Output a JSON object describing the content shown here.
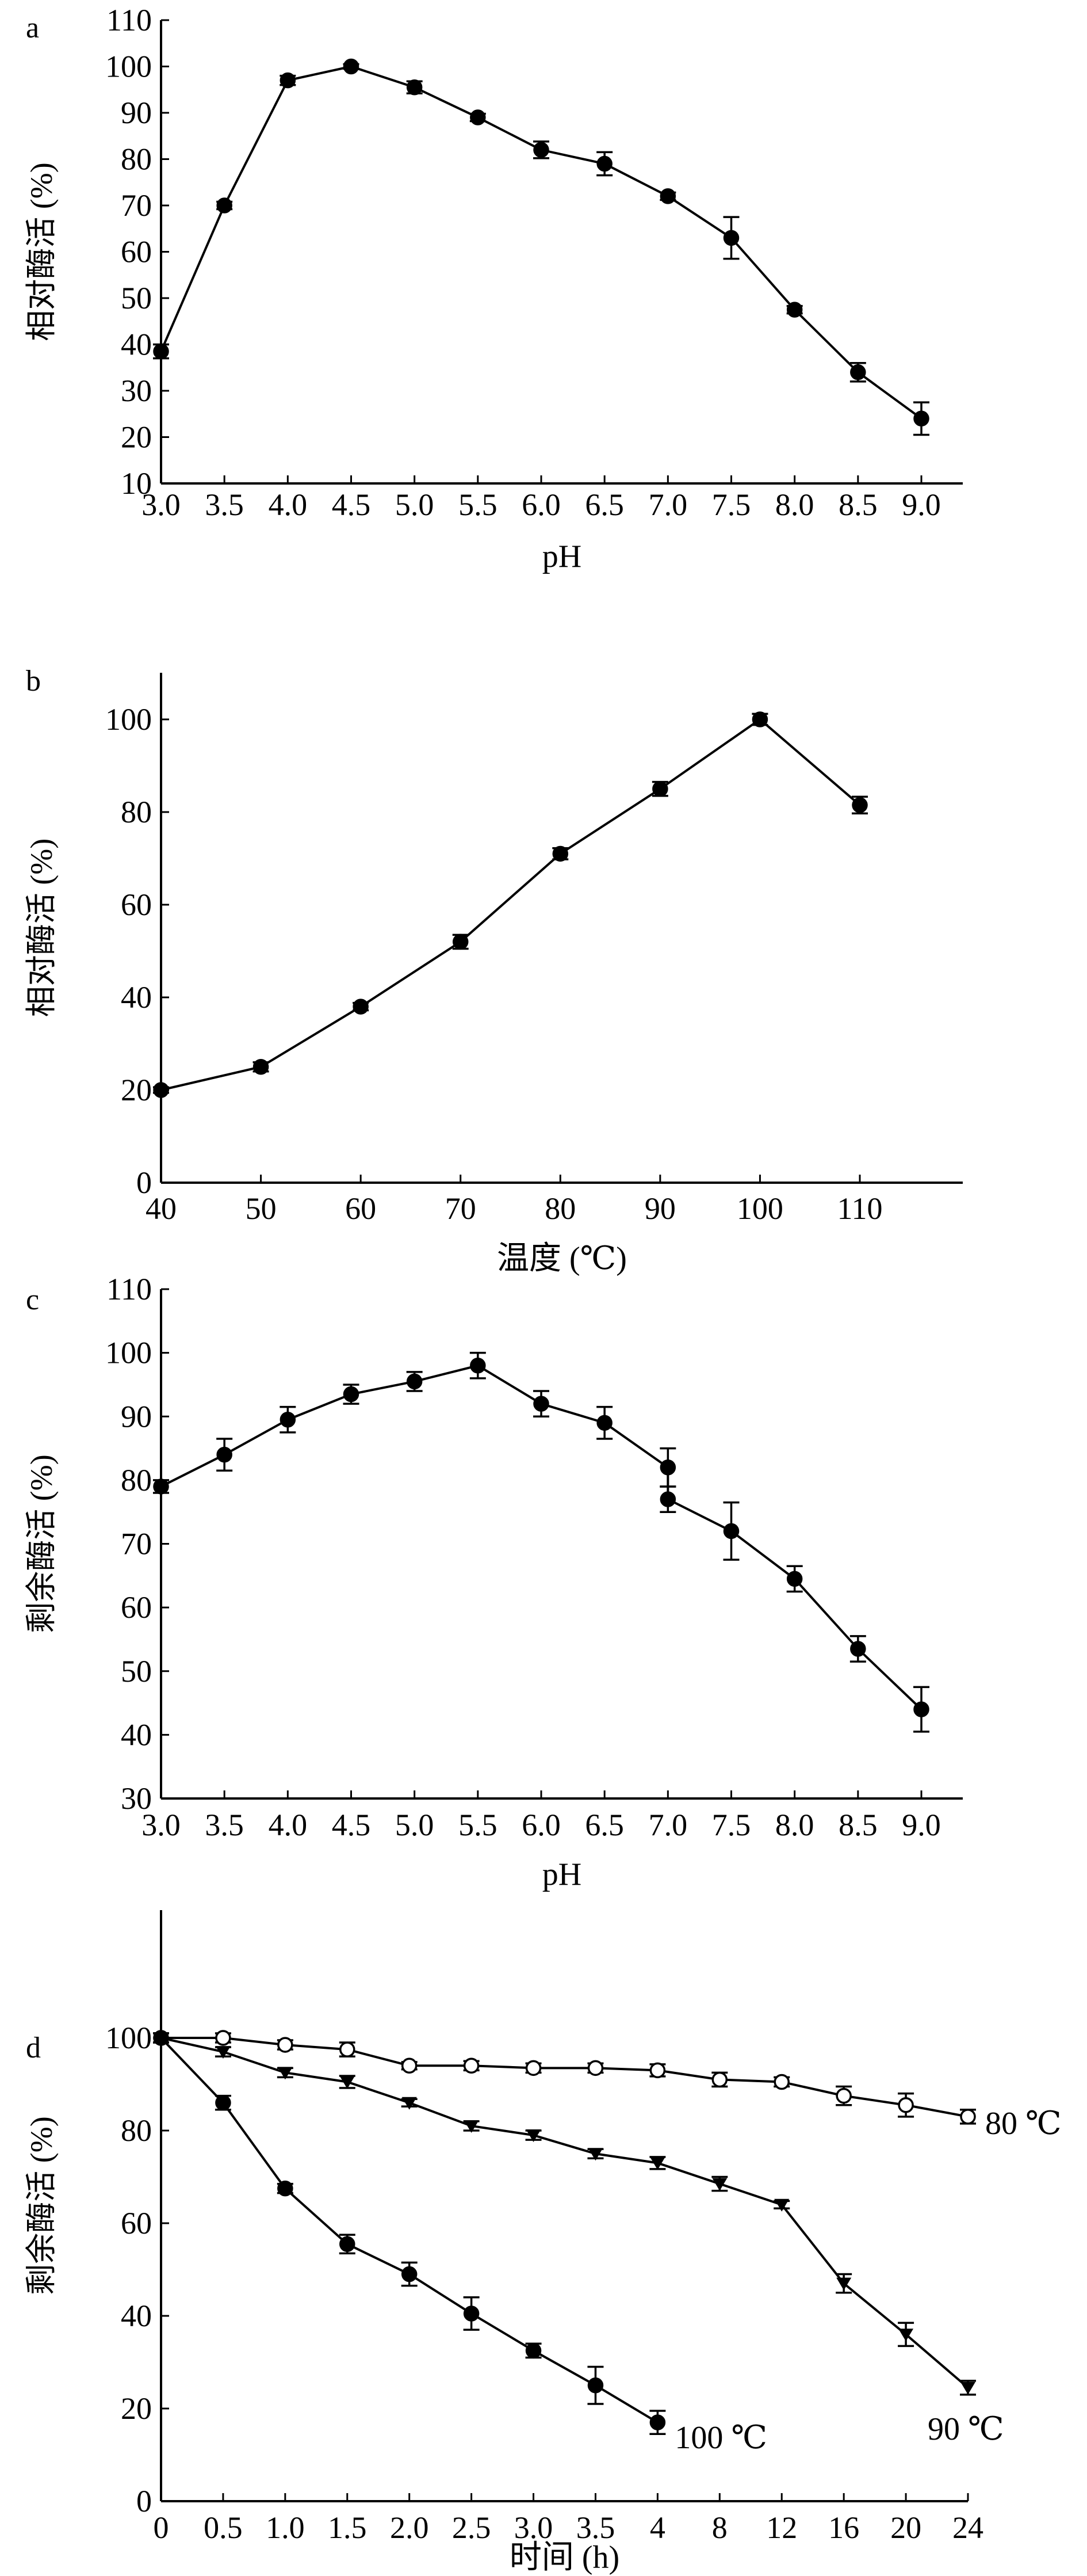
{
  "chart_data": [
    {
      "panel": "a",
      "type": "line",
      "xlabel": "pH",
      "ylabel": "相对酶活 (%)",
      "x": [
        3.0,
        3.5,
        4.0,
        4.5,
        5.0,
        5.5,
        6.0,
        6.5,
        7.0,
        7.5,
        8.0,
        8.5,
        9.0
      ],
      "xticks": [
        "3.0",
        "3.5",
        "4.0",
        "4.5",
        "5.0",
        "5.5",
        "6.0",
        "6.5",
        "7.0",
        "7.5",
        "8.0",
        "8.5",
        "9.0"
      ],
      "ylim": [
        10,
        110
      ],
      "yticks": [
        10,
        20,
        30,
        40,
        50,
        60,
        70,
        80,
        90,
        100,
        110
      ],
      "series": [
        {
          "marker": "filled-circle",
          "values": [
            38.5,
            70,
            97,
            100,
            95.5,
            89,
            82,
            79,
            72,
            63,
            47.5,
            34,
            24
          ],
          "errors": [
            1.5,
            0.8,
            1,
            0.5,
            1.3,
            0.8,
            1.8,
            2.5,
            0.8,
            4.5,
            0.8,
            2,
            3.5
          ]
        }
      ],
      "grid": false
    },
    {
      "panel": "b",
      "type": "line",
      "xlabel": "温度 (℃)",
      "ylabel": "相对酶活 (%)",
      "x": [
        40,
        50,
        60,
        70,
        80,
        90,
        100,
        110
      ],
      "xticks": [
        "40",
        "50",
        "60",
        "70",
        "80",
        "90",
        "100",
        "110"
      ],
      "ylim": [
        0,
        110
      ],
      "yticks": [
        0,
        20,
        40,
        60,
        80,
        100
      ],
      "series": [
        {
          "marker": "filled-circle",
          "values": [
            20,
            25,
            38,
            52,
            71,
            85,
            100,
            81.5
          ],
          "errors": [
            0.6,
            1,
            0.8,
            1.5,
            1.2,
            1.5,
            1.2,
            1.8
          ]
        }
      ],
      "grid": false
    },
    {
      "panel": "c",
      "type": "line",
      "xlabel": "pH",
      "ylabel": "剩余酶活 (%)",
      "x": [
        3.0,
        3.5,
        4.0,
        4.5,
        5.0,
        5.5,
        6.0,
        6.5,
        7.0,
        7.0,
        7.5,
        8.0,
        8.5,
        9.0
      ],
      "xticks": [
        "3.0",
        "3.5",
        "4.0",
        "4.5",
        "5.0",
        "5.5",
        "6.0",
        "6.5",
        "7.0",
        "7.5",
        "8.0",
        "8.5",
        "9.0"
      ],
      "ylim": [
        30,
        110
      ],
      "yticks": [
        30,
        40,
        50,
        60,
        70,
        80,
        90,
        100,
        110
      ],
      "series": [
        {
          "marker": "filled-circle",
          "values": [
            79,
            84,
            89.5,
            93.5,
            95.5,
            98,
            92,
            89,
            82,
            77,
            72,
            64.5,
            53.5,
            44
          ],
          "errors": [
            1,
            2.5,
            2,
            1.5,
            1.5,
            2,
            2,
            2.5,
            3,
            2,
            4.5,
            2,
            2,
            3.5
          ]
        }
      ],
      "grid": false
    },
    {
      "panel": "d",
      "type": "line",
      "xlabel": "时间 (h)",
      "ylabel": "剩余酶活 (%)",
      "xticks": [
        "0",
        "0.5",
        "1.0",
        "1.5",
        "2.0",
        "2.5",
        "3.0",
        "3.5",
        "4",
        "8",
        "12",
        "16",
        "20",
        "24"
      ],
      "ylim": [
        0,
        110
      ],
      "yticks": [
        0,
        20,
        40,
        60,
        80,
        100
      ],
      "series": [
        {
          "name": "80 ℃",
          "marker": "open-circle",
          "values": [
            100,
            100,
            98.5,
            97.5,
            94,
            94,
            93.5,
            93.5,
            93,
            91,
            90.5,
            87.5,
            85.5,
            83
          ],
          "errors": [
            1,
            1,
            1,
            1.5,
            0.8,
            1,
            1,
            1,
            1.3,
            1.5,
            1,
            2,
            2.5,
            1.5
          ]
        },
        {
          "name": "90 ℃",
          "marker": "filled-triangle-down",
          "values": [
            100,
            97,
            92.5,
            90.5,
            86,
            81,
            79,
            75,
            73,
            68.5,
            64,
            47,
            36,
            24.5
          ],
          "errors": [
            1,
            1,
            1,
            1.3,
            0.8,
            1,
            1,
            1,
            1.3,
            1.5,
            0.8,
            2,
            2.5,
            1.5
          ]
        },
        {
          "name": "100 ℃",
          "marker": "filled-circle",
          "values": [
            100,
            86,
            67.5,
            55.5,
            49,
            40.5,
            32.5,
            25,
            17
          ],
          "errors": [
            1,
            1.5,
            1,
            2,
            2.5,
            3.5,
            1.5,
            4,
            2.5
          ]
        }
      ],
      "grid": false
    }
  ]
}
